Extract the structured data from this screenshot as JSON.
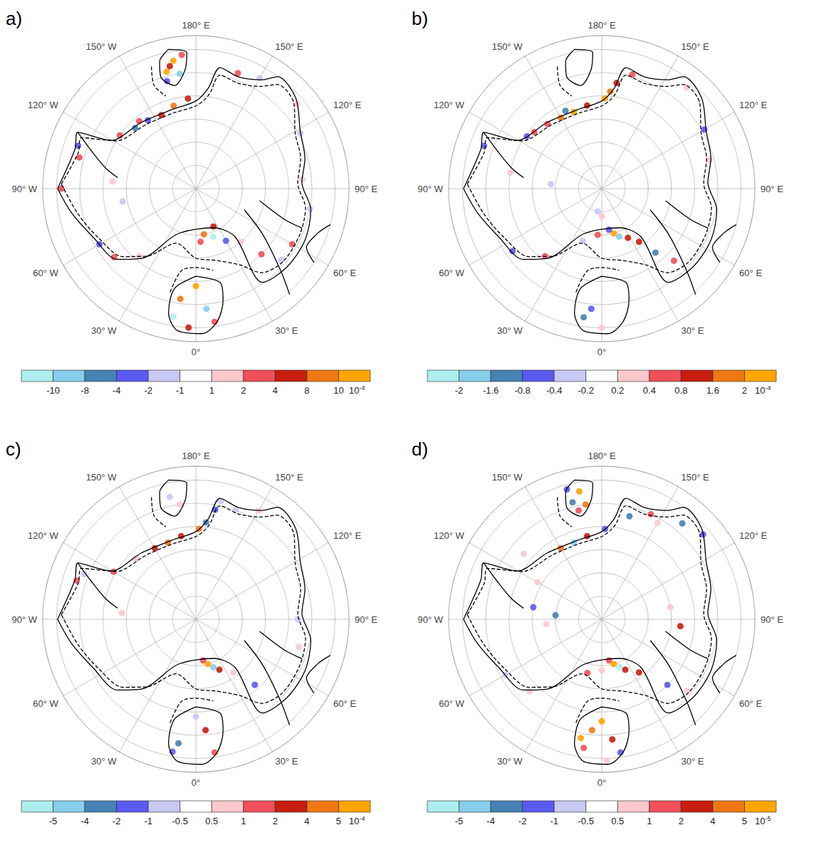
{
  "alim": [
    -180,
    180
  ],
  "aticks": [
    {
      "value": -150,
      "label": "150° W"
    },
    {
      "value": -120,
      "label": "120° W"
    },
    {
      "value": -90,
      "label": "90° W"
    },
    {
      "value": -60,
      "label": "60° W"
    },
    {
      "value": -30,
      "label": "30° W"
    },
    {
      "value": 0,
      "label": "0°"
    },
    {
      "value": 30,
      "label": "30° E"
    },
    {
      "value": 60,
      "label": "60° E"
    },
    {
      "value": 90,
      "label": "90° E"
    },
    {
      "value": 120,
      "label": "120° E"
    },
    {
      "value": 150,
      "label": "150° E"
    },
    {
      "value": 180,
      "label": "180° E"
    }
  ],
  "rlim": [
    -90,
    -57
  ],
  "rticks": [
    -85,
    -80,
    -75,
    -70,
    -65,
    -60
  ],
  "contours": [
    {
      "line_style": "solid",
      "points": [
        [
          -90,
          -60.2
        ],
        [
          -108,
          -62.6
        ],
        [
          -115.5,
          -61.8
        ],
        [
          -119.7,
          -69
        ],
        [
          -140.7,
          -71.5
        ],
        [
          -162.9,
          -72.2
        ],
        [
          180,
          -71.1
        ],
        [
          173.1,
          -68.3
        ],
        [
          168.7,
          -63.4
        ],
        [
          159.3,
          -64.2
        ],
        [
          148.6,
          -62.5
        ],
        [
          143.9,
          -60.1
        ],
        [
          132.3,
          -60.9
        ],
        [
          118.9,
          -64.3
        ],
        [
          105.5,
          -65.6
        ],
        [
          93.3,
          -67.1
        ],
        [
          79.6,
          -64.8
        ],
        [
          64.7,
          -64
        ],
        [
          49.1,
          -64.1
        ],
        [
          35.4,
          -65.2
        ],
        [
          39.1,
          -76.6
        ],
        [
          24.8,
          -80.7
        ],
        [
          -21.8,
          -79.5
        ],
        [
          -38,
          -70.9
        ],
        [
          -48,
          -67.2
        ],
        [
          -64.8,
          -65.5
        ],
        [
          -79,
          -62.7
        ],
        [
          -90,
          -60.2
        ]
      ]
    },
    {
      "line_style": "solid",
      "points": [
        [
          -115.5,
          -61.8
        ],
        [
          -110,
          -66
        ],
        [
          -103,
          -70
        ],
        [
          -98,
          -73
        ]
      ]
    },
    {
      "line_style": "solid",
      "points": [
        [
          0,
          -71.1
        ],
        [
          14.5,
          -69.1
        ],
        [
          13.7,
          -65.2
        ],
        [
          9,
          -60.9
        ],
        [
          2.4,
          -58.7
        ],
        [
          -7.3,
          -59.1
        ],
        [
          -12.4,
          -62.6
        ],
        [
          -12,
          -68
        ],
        [
          0,
          -71.1
        ]
      ]
    },
    {
      "line_style": "solid",
      "points": [
        [
          -168.9,
          -59.4
        ],
        [
          -176.2,
          -60.6
        ],
        [
          -174.7,
          -64.4
        ],
        [
          -168.4,
          -67.3
        ],
        [
          -162.6,
          -64.7
        ],
        [
          -164.1,
          -61.5
        ],
        [
          -168.9,
          -59.4
        ]
      ]
    },
    {
      "line_style": "solid",
      "points": [
        [
          66.4,
          -78.6
        ],
        [
          55.7,
          -72.6
        ],
        [
          46,
          -64.6
        ],
        [
          41.5,
          -59.5
        ]
      ]
    },
    {
      "line_style": "solid",
      "points": [
        [
          79.2,
          -76
        ],
        [
          71,
          -70
        ],
        [
          69.6,
          -65.6
        ]
      ]
    },
    {
      "line_style": "solid",
      "points": [
        [
          58,
          -60
        ],
        [
          62,
          -63
        ],
        [
          70,
          -62
        ],
        [
          75,
          -60
        ]
      ]
    },
    {
      "line_style": "dashed",
      "points": [
        [
          -92,
          -61
        ],
        [
          -107,
          -63.5
        ],
        [
          -114,
          -63
        ],
        [
          -121,
          -70
        ],
        [
          -142,
          -72.5
        ],
        [
          -163,
          -73
        ],
        [
          179,
          -72
        ],
        [
          172,
          -69.5
        ],
        [
          168,
          -65
        ],
        [
          158,
          -65.5
        ],
        [
          148,
          -64
        ],
        [
          142,
          -61.5
        ],
        [
          131,
          -62
        ],
        [
          119,
          -65.5
        ],
        [
          106,
          -66.5
        ],
        [
          93,
          -68
        ],
        [
          80,
          -66
        ],
        [
          66,
          -65.5
        ],
        [
          50,
          -65.5
        ],
        [
          38,
          -67
        ],
        [
          30,
          -71
        ],
        [
          15,
          -74
        ],
        [
          0,
          -75
        ],
        [
          -20,
          -77.5
        ],
        [
          -36,
          -72
        ],
        [
          -47,
          -68.5
        ],
        [
          -63,
          -66.5
        ],
        [
          -78,
          -64
        ],
        [
          -92,
          -61
        ]
      ]
    },
    {
      "line_style": "dashed",
      "points": [
        [
          -14,
          -67
        ],
        [
          -10,
          -72
        ],
        [
          0,
          -73
        ],
        [
          12,
          -72
        ]
      ]
    },
    {
      "line_style": "dashed",
      "points": [
        [
          -160,
          -62
        ],
        [
          -158,
          -66
        ],
        [
          -162,
          -69
        ]
      ]
    }
  ],
  "chart_data": [
    {
      "type": "scatter",
      "label": "a)",
      "colorbar": {
        "ticks": [
          -10,
          -8,
          -4,
          -2,
          -1,
          1,
          2,
          4,
          8,
          10
        ],
        "colors": [
          "#aeeeee",
          "#87ceeb",
          "#4682b4",
          "#5a5af0",
          "#c8c8f5",
          "#ffffff",
          "#fcc8cc",
          "#f0505a",
          "#c81e0f",
          "#f07814",
          "#ffa500"
        ],
        "multiplier": {
          "base": "10",
          "exponent": "-4"
        }
      },
      "points": [
        [
          -170,
          -62,
          10
        ],
        [
          -166,
          -64,
          12
        ],
        [
          -172,
          -65,
          -9
        ],
        [
          -168,
          -63,
          5
        ],
        [
          -174,
          -61,
          3
        ],
        [
          -165,
          -66,
          -3
        ],
        [
          -125,
          -70,
          3
        ],
        [
          -135,
          -71.5,
          -5
        ],
        [
          -145,
          -72,
          -3
        ],
        [
          -155,
          -72.5,
          6
        ],
        [
          -165,
          -71.5,
          9
        ],
        [
          -175,
          -70.5,
          5
        ],
        [
          -140,
          -71,
          2
        ],
        [
          160,
          -63.5,
          3
        ],
        [
          150,
          -62.5,
          -1.5
        ],
        [
          130,
          -61.5,
          1.5
        ],
        [
          118,
          -64.5,
          -1.5
        ],
        [
          -105,
          -64,
          3
        ],
        [
          -110,
          -63,
          -3
        ],
        [
          -90,
          -61,
          2
        ],
        [
          -95,
          -72,
          1.5
        ],
        [
          -80,
          -74,
          -1.5
        ],
        [
          10,
          -80,
          9
        ],
        [
          20,
          -79,
          -12
        ],
        [
          25,
          -81,
          5
        ],
        [
          5,
          -78.5,
          3
        ],
        [
          30,
          -77,
          -3
        ],
        [
          40,
          -75,
          1.5
        ],
        [
          45,
          -70,
          3
        ],
        [
          50,
          -66,
          -1.5
        ],
        [
          0,
          -69,
          12
        ],
        [
          -8,
          -66,
          9
        ],
        [
          5,
          -64,
          -9
        ],
        [
          -10,
          -62,
          -12
        ],
        [
          8,
          -61,
          3
        ],
        [
          -3,
          -60,
          5
        ],
        [
          -50,
          -67,
          3
        ],
        [
          -60,
          -66,
          -3
        ],
        [
          -40,
          -71,
          1.5
        ],
        [
          60,
          -66,
          2
        ],
        [
          80,
          -65,
          -1.5
        ],
        [
          95,
          -67,
          1.5
        ]
      ]
    },
    {
      "type": "scatter",
      "label": "b)",
      "colorbar": {
        "ticks": [
          -2,
          -1.6,
          -0.8,
          -0.4,
          -0.2,
          0.2,
          0.4,
          0.8,
          1.6,
          2
        ],
        "colors": [
          "#aeeeee",
          "#87ceeb",
          "#4682b4",
          "#5a5af0",
          "#c8c8f5",
          "#ffffff",
          "#fcc8cc",
          "#f0505a",
          "#c81e0f",
          "#f07814",
          "#ffa500"
        ],
        "multiplier": {
          "base": "10",
          "exponent": "-4"
        }
      },
      "points": [
        [
          -150,
          -72.3,
          1.8
        ],
        [
          -160,
          -72.4,
          2.2
        ],
        [
          -170,
          -71.8,
          1.2
        ],
        [
          178,
          -70.5,
          2.4
        ],
        [
          175,
          -69,
          1.8
        ],
        [
          172,
          -67,
          0.9
        ],
        [
          -140,
          -71.8,
          0.6
        ],
        [
          -130,
          -71,
          0.5
        ],
        [
          -125,
          -70.3,
          -0.5
        ],
        [
          -155,
          -71.5,
          -0.9
        ],
        [
          165,
          -64.5,
          0.5
        ],
        [
          140,
          -61.5,
          0.3
        ],
        [
          120,
          -64.5,
          -0.5
        ],
        [
          105,
          -66,
          0.3
        ],
        [
          -110,
          -63,
          -0.5
        ],
        [
          -100,
          -70,
          0.3
        ],
        [
          -95,
          -79,
          -0.3
        ],
        [
          15,
          -80,
          2.2
        ],
        [
          20,
          -79,
          -1.8
        ],
        [
          28,
          -78,
          1.2
        ],
        [
          10,
          -81,
          -0.5
        ],
        [
          35,
          -76,
          0.9
        ],
        [
          40,
          -72,
          -1
        ],
        [
          45,
          -68,
          0.6
        ],
        [
          -5,
          -80,
          0.5
        ],
        [
          -20,
          -78,
          -0.3
        ],
        [
          -8,
          -62,
          -1.2
        ],
        [
          -5,
          -64,
          -0.6
        ],
        [
          0,
          -60,
          0.3
        ],
        [
          -40,
          -71,
          0.5
        ],
        [
          -55,
          -66.5,
          -0.5
        ],
        [
          0,
          -84,
          0.3
        ],
        [
          -10,
          -85,
          -0.3
        ]
      ]
    },
    {
      "type": "scatter",
      "label": "c)",
      "colorbar": {
        "ticks": [
          -5,
          -4,
          -2,
          -1,
          -0.5,
          0.5,
          1,
          2,
          4,
          5
        ],
        "colors": [
          "#aeeeee",
          "#87ceeb",
          "#4682b4",
          "#5a5af0",
          "#c8c8f5",
          "#ffffff",
          "#fcc8cc",
          "#f0505a",
          "#c81e0f",
          "#f07814",
          "#ffa500"
        ],
        "multiplier": {
          "base": "10",
          "exponent": "-4"
        }
      },
      "points": [
        [
          -150,
          -72.3,
          3
        ],
        [
          -160,
          -72.4,
          4.5
        ],
        [
          -170,
          -71.8,
          2.5
        ],
        [
          178,
          -70.5,
          4.5
        ],
        [
          174,
          -69,
          -3
        ],
        [
          170,
          -66,
          -1.5
        ],
        [
          168,
          -64,
          -0.7
        ],
        [
          -135,
          -71.5,
          0.7
        ],
        [
          -120,
          -69.5,
          1.5
        ],
        [
          -168,
          -63,
          -0.7
        ],
        [
          -172,
          -65,
          0.7
        ],
        [
          150,
          -63,
          0.7
        ],
        [
          160,
          -65,
          -0.7
        ],
        [
          -108,
          -63,
          1.5
        ],
        [
          -112,
          -64,
          -0.7
        ],
        [
          -95,
          -74,
          0.7
        ],
        [
          15,
          -80,
          5.5
        ],
        [
          20,
          -79,
          -4.5
        ],
        [
          25,
          -78,
          2.5
        ],
        [
          10,
          -81,
          1.5
        ],
        [
          35,
          -76,
          0.7
        ],
        [
          42,
          -71,
          -1.5
        ],
        [
          -8,
          -63,
          -3
        ],
        [
          5,
          -66,
          3
        ],
        [
          -10,
          -61,
          -1.5
        ],
        [
          8,
          -61,
          1.5
        ],
        [
          0,
          -69,
          -0.7
        ],
        [
          75,
          -67,
          0.7
        ],
        [
          90,
          -68,
          -0.7
        ]
      ]
    },
    {
      "type": "scatter",
      "label": "d)",
      "colorbar": {
        "ticks": [
          -5,
          -4,
          -2,
          -1,
          -0.5,
          0.5,
          1,
          2,
          4,
          5
        ],
        "colors": [
          "#aeeeee",
          "#87ceeb",
          "#4682b4",
          "#5a5af0",
          "#c8c8f5",
          "#ffffff",
          "#fcc8cc",
          "#f0505a",
          "#c81e0f",
          "#f07814",
          "#ffa500"
        ],
        "multiplier": {
          "base": "10",
          "exponent": "-5"
        }
      },
      "points": [
        [
          -170,
          -62,
          5.5
        ],
        [
          -166,
          -64,
          -3
        ],
        [
          -172,
          -65,
          4.5
        ],
        [
          -168,
          -66,
          1.5
        ],
        [
          -165,
          -61,
          -1.5
        ],
        [
          -150,
          -72.3,
          4.5
        ],
        [
          -160,
          -72.4,
          -4.5
        ],
        [
          -170,
          -71.8,
          3
        ],
        [
          178,
          -70.5,
          -1.5
        ],
        [
          165,
          -67,
          -3
        ],
        [
          155,
          -65,
          1.5
        ],
        [
          140,
          -63,
          -2.5
        ],
        [
          130,
          -61.5,
          -1.5
        ],
        [
          150,
          -66,
          0.7
        ],
        [
          -120,
          -74,
          0.7
        ],
        [
          -100,
          -75,
          -1.5
        ],
        [
          -95,
          -80,
          -3
        ],
        [
          -85,
          -78,
          0.7
        ],
        [
          100,
          -75,
          0.7
        ],
        [
          85,
          -73,
          3
        ],
        [
          -130,
          -68,
          0.7
        ],
        [
          15,
          -80,
          5.5
        ],
        [
          20,
          -79,
          -5.5
        ],
        [
          25,
          -78,
          3
        ],
        [
          10,
          -81,
          1.5
        ],
        [
          35,
          -76,
          2.5
        ],
        [
          0,
          -79,
          0.7
        ],
        [
          -15,
          -78,
          1.5
        ],
        [
          45,
          -70,
          -1.5
        ],
        [
          50,
          -66,
          0.7
        ],
        [
          0,
          -68,
          5.5
        ],
        [
          -5,
          -66,
          4.5
        ],
        [
          5,
          -64,
          3
        ],
        [
          -8,
          -62,
          1.5
        ],
        [
          8,
          -61,
          -1.5
        ],
        [
          2,
          -59.5,
          0.7
        ],
        [
          -10,
          -64,
          5.5
        ],
        [
          -45,
          -68,
          0.7
        ],
        [
          -60,
          -66,
          -0.7
        ]
      ]
    }
  ]
}
